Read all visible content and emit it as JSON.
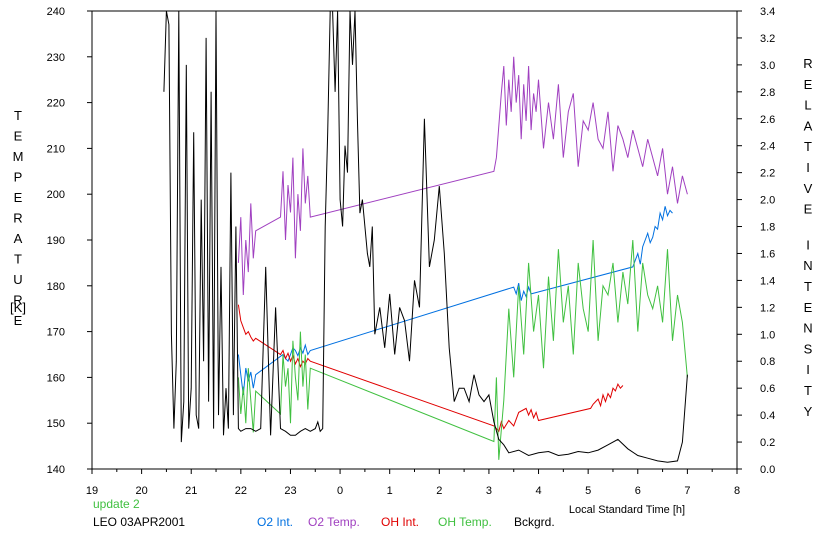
{
  "chart_data": {
    "type": "line",
    "title": "",
    "xlabel": "Local Standard Time [h]",
    "ylabel_left": "TEMPERATURE",
    "ylabel_left_unit": "[K]",
    "ylabel_right": "RELATIVE INTENSITY",
    "x_range": [
      19,
      32
    ],
    "x_tick_values": [
      19,
      20,
      21,
      22,
      23,
      24,
      25,
      26,
      27,
      28,
      29,
      30,
      31,
      32
    ],
    "x_tick_labels": [
      "19",
      "20",
      "21",
      "22",
      "23",
      "0",
      "1",
      "2",
      "3",
      "4",
      "5",
      "6",
      "7",
      "8"
    ],
    "ylim_left": [
      140,
      240
    ],
    "y_left_ticks": [
      "140",
      "150",
      "160",
      "170",
      "180",
      "190",
      "200",
      "210",
      "220",
      "230",
      "240"
    ],
    "ylim_right": [
      0.0,
      3.4
    ],
    "y_right_ticks": [
      "0.0",
      "0.2",
      "0.4",
      "0.6",
      "0.8",
      "1.0",
      "1.2",
      "1.4",
      "1.6",
      "1.8",
      "2.0",
      "2.2",
      "2.4",
      "2.6",
      "2.8",
      "3.0",
      "3.2",
      "3.4"
    ],
    "grid": false,
    "legend_placement": "bottom",
    "series": [
      {
        "name": "O2 Int.",
        "color": "#0070e0",
        "axis": "right",
        "x": [
          21.95,
          22.0,
          22.05,
          22.1,
          22.15,
          22.2,
          22.25,
          22.3,
          22.85,
          22.9,
          22.95,
          23.0,
          23.05,
          23.1,
          23.15,
          23.2,
          23.25,
          23.3,
          23.35,
          23.4,
          27.5,
          27.55,
          27.6,
          27.65,
          27.7,
          27.75,
          27.8,
          27.85,
          29.9,
          29.95,
          30.0,
          30.05,
          30.1,
          30.15,
          30.2,
          30.25,
          30.3,
          30.35,
          30.4,
          30.45,
          30.5,
          30.55,
          30.6,
          30.65,
          30.7
        ],
        "values": [
          0.85,
          0.7,
          0.55,
          0.75,
          0.65,
          0.72,
          0.6,
          0.7,
          0.85,
          0.82,
          0.8,
          0.85,
          0.9,
          0.88,
          0.84,
          0.9,
          0.86,
          0.92,
          0.85,
          0.88,
          1.35,
          1.3,
          1.38,
          1.25,
          1.32,
          1.28,
          1.35,
          1.3,
          1.5,
          1.55,
          1.6,
          1.52,
          1.65,
          1.7,
          1.75,
          1.68,
          1.72,
          1.8,
          1.78,
          1.9,
          1.85,
          1.95,
          1.88,
          1.92,
          1.9
        ]
      },
      {
        "name": "O2 Temp.",
        "color": "#a040c0",
        "axis": "left",
        "x": [
          21.95,
          22.0,
          22.05,
          22.1,
          22.15,
          22.2,
          22.25,
          22.3,
          22.8,
          22.85,
          22.9,
          22.95,
          23.0,
          23.05,
          23.1,
          23.15,
          23.2,
          23.25,
          23.3,
          23.35,
          23.4,
          27.1,
          27.15,
          27.25,
          27.3,
          27.35,
          27.4,
          27.45,
          27.5,
          27.55,
          27.6,
          27.65,
          27.7,
          27.75,
          27.8,
          27.85,
          27.9,
          27.95,
          28.0,
          28.1,
          28.2,
          28.3,
          28.4,
          28.5,
          28.6,
          28.7,
          28.8,
          28.9,
          29.0,
          29.1,
          29.2,
          29.3,
          29.4,
          29.5,
          29.6,
          29.7,
          29.8,
          29.9,
          30.0,
          30.1,
          30.2,
          30.3,
          30.4,
          30.5,
          30.6,
          30.7,
          30.8,
          30.9,
          31.0
        ],
        "values": [
          185,
          195,
          178,
          190,
          183,
          198,
          186,
          192,
          195,
          205,
          190,
          202,
          196,
          208,
          186,
          200,
          192,
          210,
          198,
          204,
          195,
          205,
          208,
          222,
          228,
          215,
          225,
          218,
          230,
          220,
          226,
          212,
          224,
          216,
          228,
          214,
          222,
          218,
          225,
          210,
          220,
          212,
          224,
          208,
          218,
          222,
          206,
          216,
          214,
          220,
          212,
          210,
          218,
          205,
          215,
          212,
          208,
          214,
          210,
          206,
          212,
          208,
          204,
          210,
          200,
          206,
          198,
          204,
          200
        ]
      },
      {
        "name": "OH Int.",
        "color": "#e00000",
        "axis": "right",
        "x": [
          21.95,
          22.0,
          22.05,
          22.1,
          22.15,
          22.2,
          22.25,
          22.3,
          22.8,
          22.85,
          22.9,
          22.95,
          23.0,
          23.05,
          23.1,
          23.15,
          23.2,
          23.25,
          23.3,
          23.35,
          23.4,
          27.1,
          27.15,
          27.2,
          27.25,
          27.3,
          27.35,
          27.4,
          27.5,
          27.6,
          27.75,
          27.8,
          27.85,
          27.9,
          27.95,
          28.0,
          29.05,
          29.1,
          29.15,
          29.2,
          29.25,
          29.3,
          29.35,
          29.4,
          29.45,
          29.5,
          29.55,
          29.6,
          29.65,
          29.7
        ],
        "values": [
          1.22,
          1.1,
          1.05,
          1.0,
          1.02,
          0.98,
          0.95,
          0.97,
          0.85,
          0.88,
          0.82,
          0.86,
          0.8,
          0.84,
          0.78,
          0.82,
          0.76,
          0.8,
          0.78,
          0.82,
          0.8,
          0.32,
          0.3,
          0.28,
          0.35,
          0.3,
          0.33,
          0.36,
          0.32,
          0.42,
          0.45,
          0.4,
          0.44,
          0.38,
          0.42,
          0.36,
          0.45,
          0.48,
          0.5,
          0.52,
          0.47,
          0.55,
          0.5,
          0.56,
          0.53,
          0.6,
          0.58,
          0.63,
          0.6,
          0.62
        ]
      },
      {
        "name": "OH Temp.",
        "color": "#40c040",
        "axis": "left",
        "x": [
          21.95,
          22.0,
          22.05,
          22.1,
          22.15,
          22.2,
          22.25,
          22.3,
          22.8,
          22.85,
          22.9,
          22.95,
          23.0,
          23.05,
          23.1,
          23.15,
          23.2,
          23.25,
          23.3,
          23.35,
          23.4,
          27.1,
          27.15,
          27.2,
          27.3,
          27.4,
          27.5,
          27.6,
          27.7,
          27.8,
          27.9,
          28.0,
          28.1,
          28.2,
          28.3,
          28.4,
          28.5,
          28.6,
          28.7,
          28.8,
          28.9,
          29.0,
          29.1,
          29.2,
          29.3,
          29.4,
          29.5,
          29.6,
          29.7,
          29.8,
          29.9,
          30.0,
          30.1,
          30.2,
          30.3,
          30.4,
          30.5,
          30.6,
          30.7,
          30.8,
          30.9,
          31.0
        ],
        "values": [
          160,
          152,
          158,
          150,
          162,
          155,
          148,
          157,
          152,
          165,
          158,
          162,
          150,
          168,
          160,
          155,
          170,
          158,
          165,
          153,
          162,
          146,
          160,
          142,
          155,
          175,
          160,
          180,
          165,
          185,
          170,
          178,
          162,
          182,
          168,
          188,
          172,
          180,
          165,
          185,
          175,
          170,
          190,
          168,
          180,
          178,
          185,
          172,
          183,
          176,
          190,
          170,
          185,
          178,
          175,
          180,
          172,
          188,
          168,
          178,
          172,
          160
        ]
      },
      {
        "name": "Bckgrd.",
        "color": "#000000",
        "axis": "right",
        "x": [
          20.45,
          20.5,
          20.55,
          20.6,
          20.65,
          20.7,
          20.75,
          20.8,
          20.85,
          20.9,
          20.95,
          21.0,
          21.05,
          21.1,
          21.15,
          21.2,
          21.25,
          21.3,
          21.35,
          21.4,
          21.45,
          21.5,
          21.55,
          21.6,
          21.65,
          21.7,
          21.75,
          21.8,
          21.85,
          21.9,
          21.95,
          22.0,
          22.1,
          22.2,
          22.3,
          22.4,
          22.5,
          22.6,
          22.7,
          22.8,
          22.9,
          23.0,
          23.1,
          23.2,
          23.3,
          23.4,
          23.5,
          23.55,
          23.6,
          23.65,
          23.7,
          23.75,
          23.8,
          23.85,
          23.9,
          23.95,
          24.0,
          24.05,
          24.1,
          24.15,
          24.2,
          24.25,
          24.3,
          24.35,
          24.4,
          24.45,
          24.5,
          24.55,
          24.6,
          24.65,
          24.7,
          24.8,
          24.9,
          25.0,
          25.1,
          25.2,
          25.3,
          25.4,
          25.5,
          25.6,
          25.7,
          25.8,
          25.9,
          26.0,
          26.1,
          26.2,
          26.3,
          26.4,
          26.5,
          26.6,
          26.7,
          26.8,
          26.9,
          27.0,
          27.1,
          27.2,
          27.3,
          27.4,
          27.6,
          27.8,
          28.0,
          28.2,
          28.4,
          28.6,
          28.8,
          29.0,
          29.2,
          29.4,
          29.6,
          29.8,
          30.0,
          30.2,
          30.4,
          30.6,
          30.8,
          30.9,
          31.0
        ],
        "values": [
          2.8,
          3.4,
          3.3,
          1.0,
          0.3,
          0.8,
          3.4,
          0.2,
          0.5,
          3.0,
          0.3,
          0.6,
          2.5,
          0.4,
          0.3,
          2.0,
          0.8,
          3.2,
          0.5,
          2.8,
          0.3,
          3.4,
          0.4,
          1.5,
          0.25,
          0.6,
          0.3,
          2.2,
          0.4,
          1.8,
          0.3,
          0.28,
          0.3,
          0.3,
          0.28,
          0.3,
          1.5,
          0.25,
          1.2,
          0.3,
          0.28,
          0.25,
          0.25,
          0.28,
          0.3,
          0.28,
          0.3,
          0.35,
          0.28,
          0.3,
          1.8,
          2.5,
          3.4,
          3.4,
          2.8,
          3.4,
          2.0,
          1.8,
          2.4,
          2.2,
          3.4,
          3.0,
          3.4,
          2.6,
          1.9,
          2.0,
          1.8,
          1.6,
          1.5,
          1.8,
          1.0,
          1.2,
          0.9,
          1.3,
          0.85,
          1.2,
          1.1,
          0.8,
          1.4,
          1.2,
          2.6,
          1.5,
          1.7,
          2.1,
          1.6,
          0.9,
          0.5,
          0.6,
          0.6,
          0.5,
          0.7,
          0.55,
          0.5,
          0.55,
          0.35,
          0.22,
          0.18,
          0.12,
          0.14,
          0.1,
          0.12,
          0.13,
          0.1,
          0.11,
          0.13,
          0.12,
          0.14,
          0.18,
          0.22,
          0.15,
          0.1,
          0.08,
          0.06,
          0.05,
          0.06,
          0.2,
          0.7
        ]
      }
    ],
    "annotations": [
      "update 2",
      "LEO 03APR2001"
    ]
  }
}
